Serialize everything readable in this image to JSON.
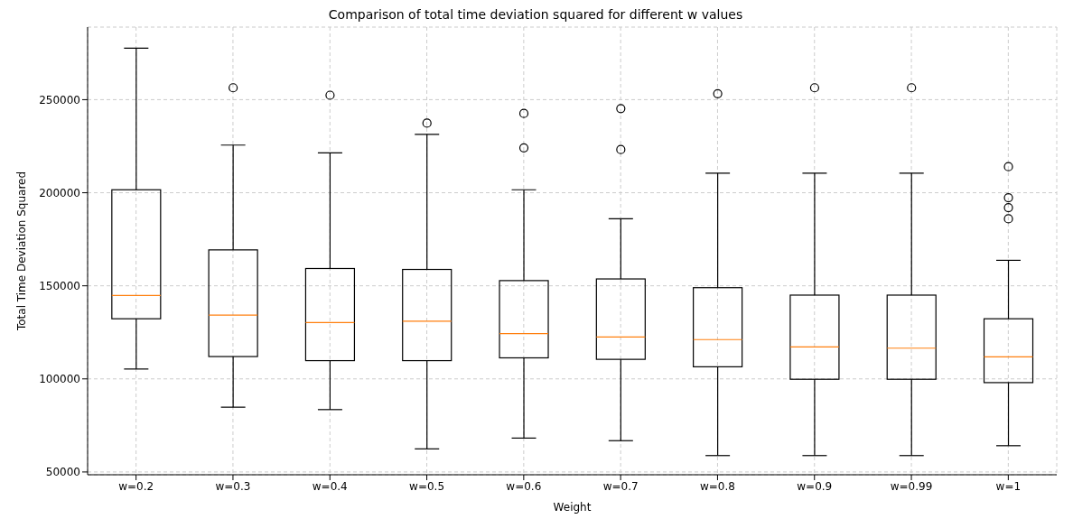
{
  "chart_data": {
    "type": "box",
    "title": "Comparison of total time deviation squared for different w values",
    "xlabel": "Weight",
    "ylabel": "Total Time Deviation Squared",
    "categories": [
      "w=0.2",
      "w=0.3",
      "w=0.4",
      "w=0.5",
      "w=0.6",
      "w=0.7",
      "w=0.8",
      "w=0.9",
      "w=0.99",
      "w=1"
    ],
    "color": "#000000",
    "boxes": [
      {
        "low": 105300,
        "q1": 132300,
        "median": 144800,
        "q3": 201600,
        "high": 277700
      },
      {
        "low": 84800,
        "q1": 112000,
        "median": 134300,
        "q3": 169300,
        "high": 225600,
        "outliers": [
          256400
        ]
      },
      {
        "low": 83500,
        "q1": 109800,
        "median": 130300,
        "q3": 159300,
        "high": 221400,
        "outliers": [
          252400
        ]
      },
      {
        "low": 62400,
        "q1": 109800,
        "median": 131000,
        "q3": 158800,
        "high": 231400,
        "outliers": [
          237400
        ]
      },
      {
        "low": 68200,
        "q1": 111300,
        "median": 124300,
        "q3": 152800,
        "high": 201600,
        "outliers": [
          242600,
          224100
        ]
      },
      {
        "low": 66800,
        "q1": 110500,
        "median": 122500,
        "q3": 153700,
        "high": 186000,
        "outliers": [
          245200,
          223200
        ]
      },
      {
        "low": 58800,
        "q1": 106500,
        "median": 121100,
        "q3": 149000,
        "high": 210500,
        "outliers": [
          253200
        ]
      },
      {
        "low": 58800,
        "q1": 99800,
        "median": 117200,
        "q3": 145000,
        "high": 210500,
        "outliers": [
          256400
        ]
      },
      {
        "low": 58800,
        "q1": 99800,
        "median": 116500,
        "q3": 145000,
        "high": 210500,
        "outliers": [
          256400
        ]
      },
      {
        "low": 64100,
        "q1": 98000,
        "median": 111800,
        "q3": 132300,
        "high": 163700,
        "outliers": [
          214000,
          197300,
          192000,
          186000
        ]
      }
    ],
    "ylim": [
      48500,
      289000
    ],
    "yticks": [
      50000,
      100000,
      150000,
      200000,
      250000
    ],
    "grid": true
  }
}
